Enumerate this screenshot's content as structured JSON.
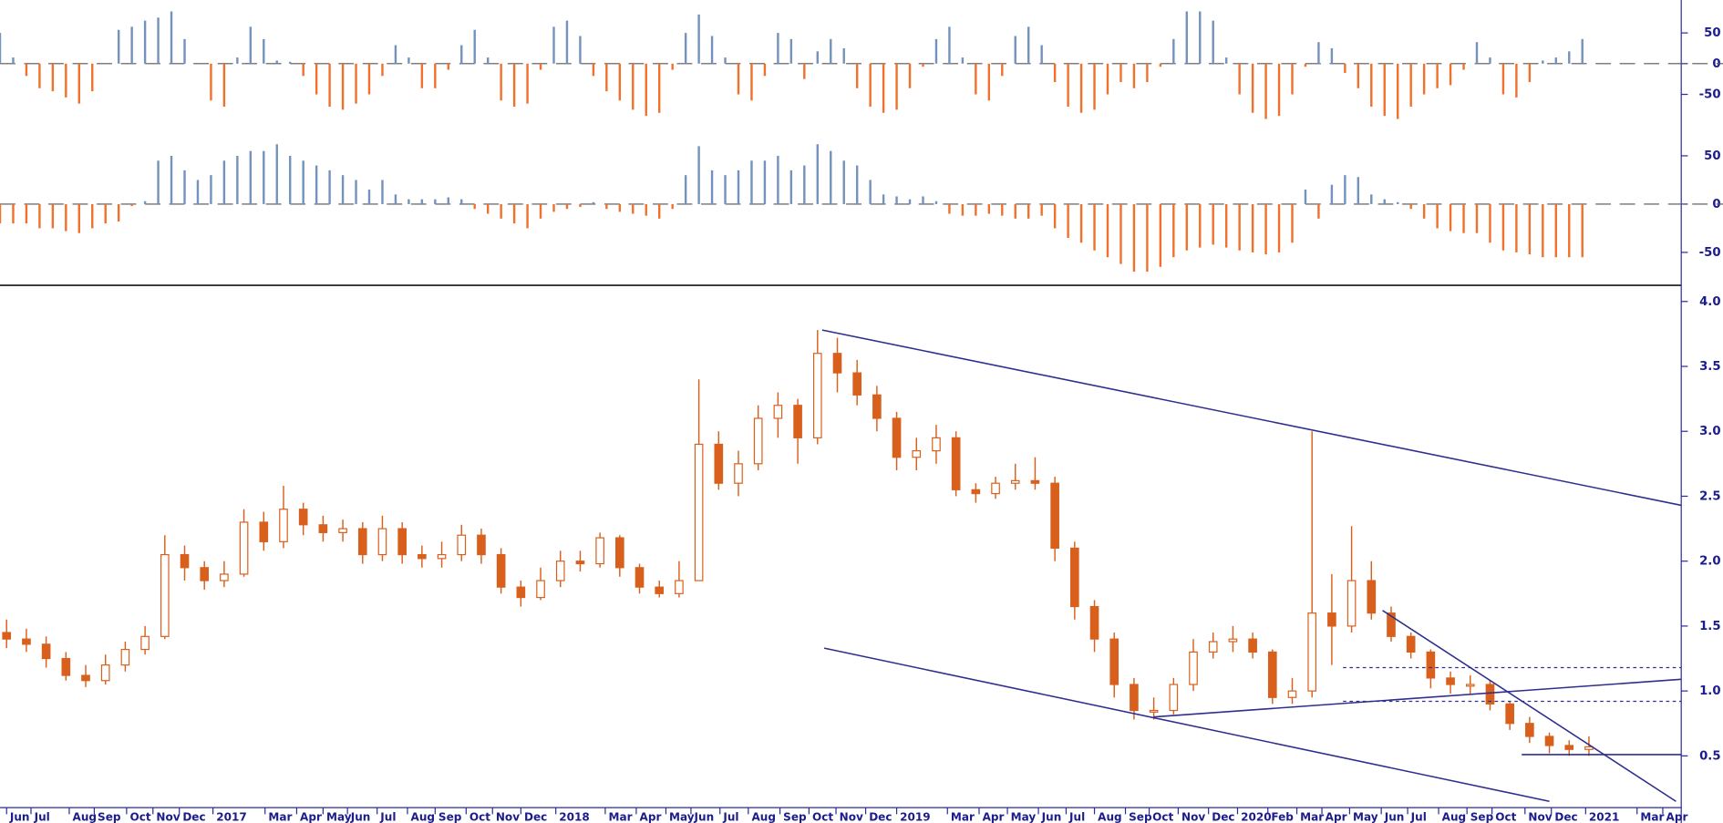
{
  "chart_data": [
    {
      "type": "bar",
      "ylim": [
        -100,
        100
      ],
      "yticks": [
        50,
        0,
        -50
      ],
      "zero_line": true,
      "pos_color": "#7393bd",
      "neg_color": "#f0712c",
      "x": [
        0,
        2,
        4,
        6,
        8,
        10,
        12,
        14,
        16,
        18,
        20,
        22,
        24,
        26,
        28,
        30,
        32,
        34,
        36,
        38,
        40,
        42,
        44,
        46,
        48,
        50,
        52,
        54,
        56,
        58,
        60,
        62,
        64,
        66,
        68,
        70,
        72,
        74,
        76,
        78,
        80,
        82,
        84,
        86,
        88,
        90,
        92,
        94,
        96,
        98,
        100,
        102,
        104,
        106,
        108,
        110,
        112,
        114,
        116,
        118,
        120,
        122,
        124,
        126,
        128,
        130,
        132,
        134,
        136,
        138,
        140,
        142,
        144,
        146,
        148,
        150,
        152,
        154,
        156,
        158,
        160,
        162,
        164,
        166,
        168,
        170,
        172,
        174,
        176,
        178,
        180,
        182,
        184,
        186,
        188,
        190,
        192,
        194,
        196,
        198,
        200,
        202,
        204,
        206,
        208,
        210,
        212,
        214,
        216,
        218,
        220,
        222,
        224,
        226,
        228,
        230,
        232,
        234,
        236,
        238,
        240
      ],
      "values": [
        50,
        10,
        -20,
        -40,
        -45,
        -55,
        -65,
        -45,
        0,
        55,
        60,
        70,
        75,
        85,
        40,
        0,
        -60,
        -70,
        10,
        60,
        40,
        5,
        3,
        -20,
        -50,
        -70,
        -75,
        -65,
        -50,
        -20,
        30,
        10,
        -40,
        -40,
        -10,
        30,
        55,
        10,
        -60,
        -70,
        -65,
        -10,
        60,
        70,
        45,
        -20,
        -45,
        -60,
        -75,
        -85,
        -80,
        -10,
        50,
        80,
        45,
        10,
        -50,
        -60,
        -20,
        50,
        40,
        -25,
        20,
        40,
        25,
        -40,
        -70,
        -80,
        -75,
        -40,
        -5,
        40,
        60,
        10,
        -50,
        -60,
        -20,
        45,
        60,
        30,
        -30,
        -70,
        -80,
        -75,
        -50,
        -30,
        -40,
        -30,
        -5,
        40,
        85,
        85,
        70,
        10,
        -50,
        -80,
        -90,
        -85,
        -50,
        -5,
        35,
        25,
        -15,
        -40,
        -70,
        -85,
        -90,
        -70,
        -50,
        -40,
        -35,
        -10,
        35,
        10,
        -50,
        -55,
        -30,
        5,
        10,
        20,
        40
      ]
    },
    {
      "type": "bar",
      "ylim": [
        -80,
        75
      ],
      "yticks": [
        50,
        0,
        -50
      ],
      "zero_line": true,
      "pos_color": "#7393bd",
      "neg_color": "#f0712c",
      "x": [
        0,
        2,
        4,
        6,
        8,
        10,
        12,
        14,
        16,
        18,
        20,
        22,
        24,
        26,
        28,
        30,
        32,
        34,
        36,
        38,
        40,
        42,
        44,
        46,
        48,
        50,
        52,
        54,
        56,
        58,
        60,
        62,
        64,
        66,
        68,
        70,
        72,
        74,
        76,
        78,
        80,
        82,
        84,
        86,
        88,
        90,
        92,
        94,
        96,
        98,
        100,
        102,
        104,
        106,
        108,
        110,
        112,
        114,
        116,
        118,
        120,
        122,
        124,
        126,
        128,
        130,
        132,
        134,
        136,
        138,
        140,
        142,
        144,
        146,
        148,
        150,
        152,
        154,
        156,
        158,
        160,
        162,
        164,
        166,
        168,
        170,
        172,
        174,
        176,
        178,
        180,
        182,
        184,
        186,
        188,
        190,
        192,
        194,
        196,
        198,
        200,
        202,
        204,
        206,
        208,
        210,
        212,
        214,
        216,
        218,
        220,
        222,
        224,
        226,
        228,
        230,
        232,
        234,
        236,
        238,
        240
      ],
      "values": [
        -20,
        -20,
        -20,
        -25,
        -25,
        -28,
        -30,
        -25,
        -20,
        -18,
        -2,
        3,
        45,
        50,
        35,
        25,
        30,
        45,
        50,
        55,
        55,
        62,
        50,
        45,
        40,
        35,
        30,
        25,
        15,
        25,
        10,
        5,
        5,
        5,
        7,
        5,
        -5,
        -10,
        -15,
        -20,
        -25,
        -15,
        -8,
        -5,
        -3,
        2,
        -5,
        -8,
        -10,
        -12,
        -15,
        -5,
        30,
        60,
        35,
        30,
        35,
        45,
        45,
        50,
        35,
        40,
        62,
        55,
        45,
        40,
        25,
        10,
        8,
        5,
        8,
        3,
        -10,
        -12,
        -12,
        -10,
        -12,
        -15,
        -15,
        -12,
        -25,
        -35,
        -40,
        -48,
        -55,
        -62,
        -70,
        -70,
        -65,
        -55,
        -48,
        -45,
        -42,
        -45,
        -48,
        -50,
        -52,
        -50,
        -40,
        15,
        -15,
        20,
        30,
        28,
        10,
        5,
        2,
        -5,
        -15,
        -25,
        -28,
        -30,
        -30,
        -40,
        -48,
        -50,
        -52,
        -55,
        -55,
        -55,
        -55
      ]
    },
    {
      "type": "candlestick",
      "color": "#d9601c",
      "line_color": "#2e2e8e",
      "ylim": [
        0,
        4.1
      ],
      "xlim": [
        0,
        255
      ],
      "yticks": [
        0.5,
        {
          "value": 1.0,
          "label": "1.0"
        },
        1.5,
        {
          "value": 2.0,
          "label": "2.0"
        },
        2.5,
        {
          "value": 3.0,
          "label": "3.0"
        },
        3.5,
        {
          "value": 4.0,
          "label": "4.0"
        }
      ],
      "xticks": [
        {
          "value": 1,
          "label": "Jun"
        },
        {
          "value": 4.7,
          "label": "Jul"
        },
        {
          "value": 10.5,
          "label": "Aug"
        },
        {
          "value": 14.3,
          "label": "Sep"
        },
        {
          "value": 19.2,
          "label": "Oct"
        },
        {
          "value": 23.2,
          "label": "Nov"
        },
        {
          "value": 27.2,
          "label": "Dec"
        },
        {
          "value": 32.3,
          "label": "2017"
        },
        {
          "value": 40.2,
          "label": "Mar"
        },
        {
          "value": 45,
          "label": "Apr"
        },
        {
          "value": 49,
          "label": "May"
        },
        {
          "value": 52.7,
          "label": "Jun"
        },
        {
          "value": 57.2,
          "label": "Jul"
        },
        {
          "value": 61.8,
          "label": "Aug"
        },
        {
          "value": 66,
          "label": "Sep"
        },
        {
          "value": 70.7,
          "label": "Oct"
        },
        {
          "value": 74.7,
          "label": "Nov"
        },
        {
          "value": 79,
          "label": "Dec"
        },
        {
          "value": 84.3,
          "label": "2018"
        },
        {
          "value": 91.8,
          "label": "Mar"
        },
        {
          "value": 96.5,
          "label": "Apr"
        },
        {
          "value": 101,
          "label": "May"
        },
        {
          "value": 104.8,
          "label": "Jun"
        },
        {
          "value": 109.2,
          "label": "Jul"
        },
        {
          "value": 113.5,
          "label": "Aug"
        },
        {
          "value": 118.3,
          "label": "Sep"
        },
        {
          "value": 122.7,
          "label": "Oct"
        },
        {
          "value": 126.8,
          "label": "Nov"
        },
        {
          "value": 131.3,
          "label": "Dec"
        },
        {
          "value": 136,
          "label": "2019"
        },
        {
          "value": 143.7,
          "label": "Mar"
        },
        {
          "value": 148.5,
          "label": "Apr"
        },
        {
          "value": 152.8,
          "label": "May"
        },
        {
          "value": 157.5,
          "label": "Jun"
        },
        {
          "value": 161.7,
          "label": "Jul"
        },
        {
          "value": 166,
          "label": "Aug"
        },
        {
          "value": 170.7,
          "label": "Sep"
        },
        {
          "value": 174.3,
          "label": "Oct"
        },
        {
          "value": 178.7,
          "label": "Nov"
        },
        {
          "value": 183.3,
          "label": "Dec"
        },
        {
          "value": 187.7,
          "label": "2020"
        },
        {
          "value": 192.3,
          "label": "Feb"
        },
        {
          "value": 196.7,
          "label": "Mar"
        },
        {
          "value": 200.5,
          "label": "Apr"
        },
        {
          "value": 204.7,
          "label": "May"
        },
        {
          "value": 209.5,
          "label": "Jun"
        },
        {
          "value": 213.5,
          "label": "Jul"
        },
        {
          "value": 218.2,
          "label": "Aug"
        },
        {
          "value": 222.5,
          "label": "Sep"
        },
        {
          "value": 226.3,
          "label": "Oct"
        },
        {
          "value": 231.3,
          "label": "Nov"
        },
        {
          "value": 235.3,
          "label": "Dec"
        },
        {
          "value": 240.5,
          "label": "2021"
        },
        {
          "value": 248.3,
          "label": "Mar"
        },
        {
          "value": 252.2,
          "label": "Apr"
        }
      ],
      "x": [
        1,
        4,
        7,
        10,
        13,
        16,
        19,
        22,
        25,
        28,
        31,
        34,
        37,
        40,
        43,
        46,
        49,
        52,
        55,
        58,
        61,
        64,
        67,
        70,
        73,
        76,
        79,
        82,
        85,
        88,
        91,
        94,
        97,
        100,
        103,
        106,
        109,
        112,
        115,
        118,
        121,
        124,
        127,
        130,
        133,
        136,
        139,
        142,
        145,
        148,
        151,
        154,
        157,
        160,
        163,
        166,
        169,
        172,
        175,
        178,
        181,
        184,
        187,
        190,
        193,
        196,
        199,
        202,
        205,
        208,
        211,
        214,
        217,
        220,
        223,
        226,
        229,
        232,
        235,
        238,
        241
      ],
      "open": [
        1.45,
        1.4,
        1.36,
        1.25,
        1.12,
        1.08,
        1.2,
        1.32,
        1.42,
        2.05,
        1.95,
        1.85,
        1.9,
        2.3,
        2.15,
        2.4,
        2.28,
        2.22,
        2.25,
        2.05,
        2.25,
        2.05,
        2.02,
        2.05,
        2.2,
        2.05,
        1.8,
        1.72,
        1.85,
        2.0,
        1.98,
        2.18,
        1.95,
        1.8,
        1.75,
        1.85,
        2.9,
        2.6,
        2.75,
        3.1,
        3.2,
        2.95,
        3.6,
        3.45,
        3.28,
        3.1,
        2.8,
        2.85,
        2.95,
        2.55,
        2.52,
        2.6,
        2.62,
        2.6,
        2.1,
        1.65,
        1.4,
        1.05,
        0.85,
        0.85,
        1.05,
        1.3,
        1.38,
        1.4,
        1.3,
        0.95,
        1.0,
        1.6,
        1.5,
        1.85,
        1.6,
        1.42,
        1.3,
        1.1,
        1.05,
        1.05,
        0.9,
        0.75,
        0.65,
        0.58,
        0.55
      ],
      "high": [
        1.55,
        1.48,
        1.42,
        1.3,
        1.2,
        1.28,
        1.38,
        1.5,
        2.2,
        2.12,
        2.0,
        2.0,
        2.4,
        2.38,
        2.58,
        2.45,
        2.35,
        2.32,
        2.3,
        2.35,
        2.3,
        2.12,
        2.15,
        2.28,
        2.25,
        2.1,
        1.85,
        1.95,
        2.08,
        2.08,
        2.22,
        2.2,
        1.98,
        1.85,
        2.0,
        3.4,
        3.0,
        2.85,
        3.2,
        3.3,
        3.25,
        3.78,
        3.72,
        3.55,
        3.35,
        3.15,
        2.95,
        3.05,
        3.0,
        2.6,
        2.65,
        2.75,
        2.8,
        2.65,
        2.15,
        1.7,
        1.45,
        1.1,
        0.95,
        1.1,
        1.4,
        1.45,
        1.5,
        1.45,
        1.32,
        1.1,
        3.0,
        1.9,
        2.27,
        2.0,
        1.65,
        1.45,
        1.32,
        1.15,
        1.12,
        1.08,
        0.92,
        0.8,
        0.68,
        0.62,
        0.65
      ],
      "low": [
        1.33,
        1.3,
        1.18,
        1.08,
        1.03,
        1.05,
        1.15,
        1.28,
        1.4,
        1.85,
        1.78,
        1.8,
        1.88,
        2.08,
        2.1,
        2.2,
        2.15,
        2.15,
        1.98,
        2.0,
        1.98,
        1.95,
        1.95,
        2.0,
        1.98,
        1.75,
        1.65,
        1.7,
        1.8,
        1.92,
        1.95,
        1.88,
        1.75,
        1.72,
        1.72,
        1.85,
        2.55,
        2.5,
        2.7,
        2.95,
        2.75,
        2.9,
        3.3,
        3.2,
        3.0,
        2.7,
        2.7,
        2.75,
        2.5,
        2.45,
        2.48,
        2.55,
        2.55,
        2.0,
        1.55,
        1.3,
        0.95,
        0.78,
        0.78,
        0.82,
        1.0,
        1.25,
        1.3,
        1.25,
        0.9,
        0.9,
        0.95,
        1.2,
        1.45,
        1.55,
        1.38,
        1.25,
        1.02,
        0.98,
        0.98,
        0.85,
        0.7,
        0.6,
        0.52,
        0.5,
        0.5
      ],
      "close": [
        1.4,
        1.36,
        1.25,
        1.12,
        1.08,
        1.2,
        1.32,
        1.42,
        2.05,
        1.95,
        1.85,
        1.9,
        2.3,
        2.15,
        2.4,
        2.28,
        2.22,
        2.25,
        2.05,
        2.25,
        2.05,
        2.02,
        2.05,
        2.2,
        2.05,
        1.8,
        1.72,
        1.85,
        2.0,
        1.98,
        2.18,
        1.95,
        1.8,
        1.75,
        1.85,
        2.9,
        2.6,
        2.75,
        3.1,
        3.2,
        2.95,
        3.6,
        3.45,
        3.28,
        3.1,
        2.8,
        2.85,
        2.95,
        2.55,
        2.52,
        2.6,
        2.62,
        2.6,
        2.1,
        1.65,
        1.4,
        1.05,
        0.85,
        0.85,
        1.05,
        1.3,
        1.38,
        1.4,
        1.3,
        0.95,
        1.0,
        1.6,
        1.5,
        1.85,
        1.6,
        1.42,
        1.3,
        1.1,
        1.05,
        1.05,
        0.9,
        0.75,
        0.65,
        0.58,
        0.55,
        0.57
      ],
      "trendlines": [
        {
          "x": [
            124.7,
            255
          ],
          "y": [
            3.78,
            2.43
          ],
          "dash": false
        },
        {
          "x": [
            125,
            235
          ],
          "y": [
            1.33,
            0.15
          ],
          "dash": false
        },
        {
          "x": [
            175,
            255
          ],
          "y": [
            0.8,
            1.09
          ],
          "dash": false
        },
        {
          "x": [
            209.7,
            254.2
          ],
          "y": [
            1.62,
            0.15
          ],
          "dash": false
        },
        {
          "x": [
            203.7,
            255
          ],
          "y": [
            1.18,
            1.18
          ],
          "dash": true
        },
        {
          "x": [
            203.7,
            255
          ],
          "y": [
            0.92,
            0.92
          ],
          "dash": true
        },
        {
          "x": [
            230.8,
            255
          ],
          "y": [
            0.51,
            0.51
          ],
          "dash": false
        }
      ]
    }
  ]
}
